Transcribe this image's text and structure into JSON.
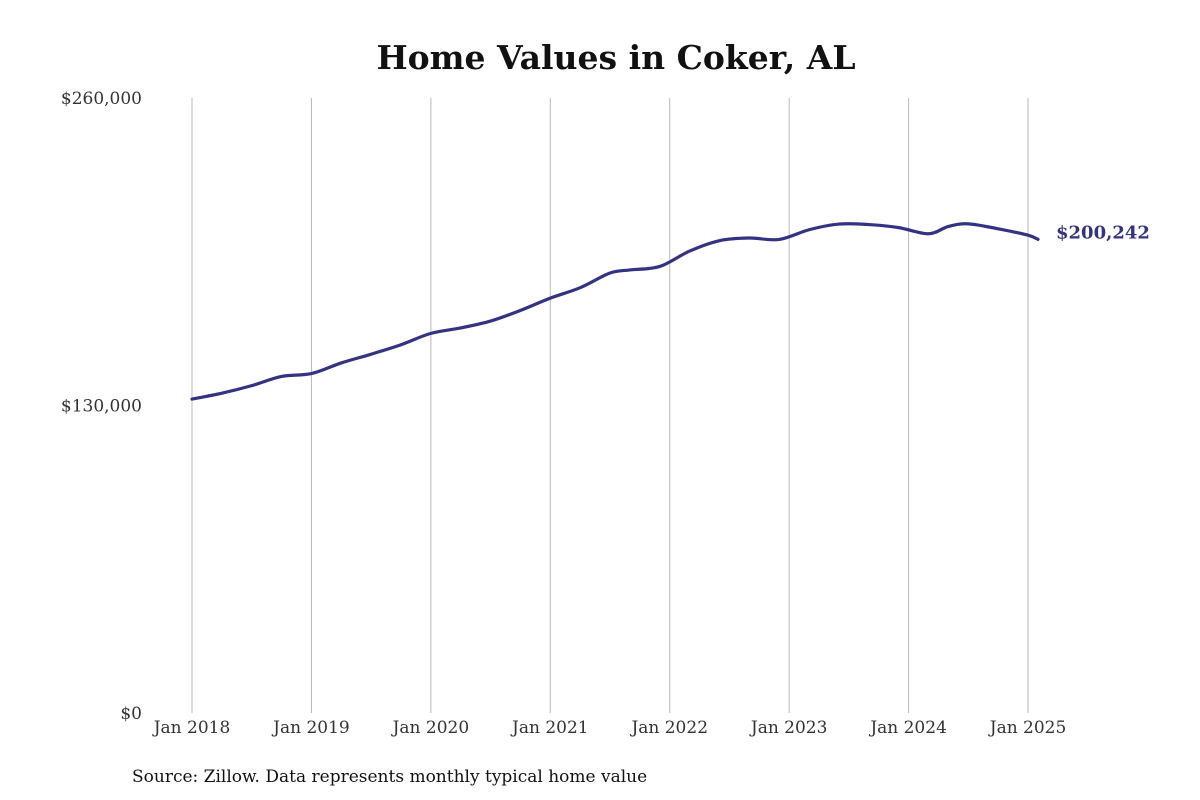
{
  "chart_data": {
    "type": "line",
    "title": "Home Values in Coker, AL",
    "xlabel": "",
    "ylabel": "",
    "ylim": [
      0,
      260000
    ],
    "xlim": [
      "2018-01",
      "2025-02"
    ],
    "y_ticks": [
      {
        "value": 0,
        "label": "$0"
      },
      {
        "value": 130000,
        "label": "$130,000"
      },
      {
        "value": 260000,
        "label": "$260,000"
      }
    ],
    "x_ticks": [
      {
        "value": "2018-01",
        "label": "Jan 2018"
      },
      {
        "value": "2019-01",
        "label": "Jan 2019"
      },
      {
        "value": "2020-01",
        "label": "Jan 2020"
      },
      {
        "value": "2021-01",
        "label": "Jan 2021"
      },
      {
        "value": "2022-01",
        "label": "Jan 2022"
      },
      {
        "value": "2023-01",
        "label": "Jan 2023"
      },
      {
        "value": "2024-01",
        "label": "Jan 2024"
      },
      {
        "value": "2025-01",
        "label": "Jan 2025"
      }
    ],
    "grid": {
      "vertical": true,
      "horizontal": false
    },
    "series": [
      {
        "color": "#343283",
        "end_label": "$200,242",
        "points": [
          {
            "x": "2018-01",
            "y": 132700
          },
          {
            "x": "2018-04",
            "y": 135200
          },
          {
            "x": "2018-07",
            "y": 138400
          },
          {
            "x": "2018-10",
            "y": 142300
          },
          {
            "x": "2019-01",
            "y": 143500
          },
          {
            "x": "2019-04",
            "y": 148000
          },
          {
            "x": "2019-07",
            "y": 151700
          },
          {
            "x": "2019-10",
            "y": 155700
          },
          {
            "x": "2020-01",
            "y": 160500
          },
          {
            "x": "2020-04",
            "y": 162800
          },
          {
            "x": "2020-07",
            "y": 165700
          },
          {
            "x": "2020-10",
            "y": 170200
          },
          {
            "x": "2021-01",
            "y": 175400
          },
          {
            "x": "2021-04",
            "y": 179800
          },
          {
            "x": "2021-07",
            "y": 186000
          },
          {
            "x": "2021-09",
            "y": 187300
          },
          {
            "x": "2021-12",
            "y": 188800
          },
          {
            "x": "2022-03",
            "y": 195300
          },
          {
            "x": "2022-06",
            "y": 199700
          },
          {
            "x": "2022-09",
            "y": 200800
          },
          {
            "x": "2022-12",
            "y": 200200
          },
          {
            "x": "2023-03",
            "y": 204300
          },
          {
            "x": "2023-06",
            "y": 206700
          },
          {
            "x": "2023-09",
            "y": 206500
          },
          {
            "x": "2023-12",
            "y": 205200
          },
          {
            "x": "2024-03",
            "y": 202600
          },
          {
            "x": "2024-05",
            "y": 205700
          },
          {
            "x": "2024-07",
            "y": 206800
          },
          {
            "x": "2024-10",
            "y": 204700
          },
          {
            "x": "2025-01",
            "y": 202000
          },
          {
            "x": "2025-02",
            "y": 200242
          }
        ]
      }
    ]
  },
  "source_note": "Source: Zillow. Data represents monthly typical home value"
}
